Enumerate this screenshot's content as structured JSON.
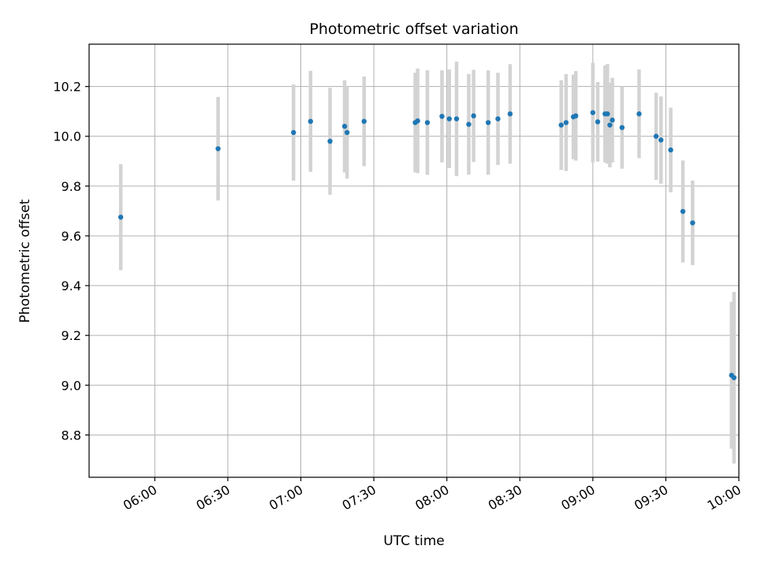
{
  "chart_data": {
    "type": "scatter",
    "title": "Photometric offset variation",
    "xlabel": "UTC time",
    "ylabel": "Photometric offset",
    "x_ticks": [
      "05:30",
      "06:00",
      "06:30",
      "07:00",
      "07:30",
      "08:00",
      "08:30",
      "09:00",
      "09:30",
      "10:00"
    ],
    "x_tick_labels": [
      "",
      "06:00",
      "06:30",
      "07:00",
      "07:30",
      "08:00",
      "08:30",
      "09:00",
      "09:30",
      "10:00"
    ],
    "xlim": [
      "05:33",
      "10:00"
    ],
    "y_ticks": [
      8.8,
      9.0,
      9.2,
      9.4,
      9.6,
      9.8,
      10.0,
      10.2
    ],
    "y_tick_labels": [
      "8.8",
      "9.0",
      "9.2",
      "9.4",
      "9.6",
      "9.8",
      "10.0",
      "10.2"
    ],
    "ylim": [
      8.63,
      10.37
    ],
    "grid": true,
    "point_color": "#1f77b4",
    "errorbar_color": "#d3d3d3",
    "series": [
      {
        "points": [
          {
            "x": "05:46",
            "y": 9.675,
            "err": 0.213
          },
          {
            "x": "06:26",
            "y": 9.95,
            "err": 0.208
          },
          {
            "x": "06:57",
            "y": 10.015,
            "err": 0.193
          },
          {
            "x": "07:04",
            "y": 10.06,
            "err": 0.203
          },
          {
            "x": "07:12",
            "y": 9.98,
            "err": 0.215
          },
          {
            "x": "07:18",
            "y": 10.04,
            "err": 0.185
          },
          {
            "x": "07:19",
            "y": 10.015,
            "err": 0.185
          },
          {
            "x": "07:26",
            "y": 10.06,
            "err": 0.18
          },
          {
            "x": "07:47",
            "y": 10.055,
            "err": 0.2
          },
          {
            "x": "07:48",
            "y": 10.062,
            "err": 0.21
          },
          {
            "x": "07:52",
            "y": 10.055,
            "err": 0.21
          },
          {
            "x": "07:58",
            "y": 10.08,
            "err": 0.185
          },
          {
            "x": "08:01",
            "y": 10.07,
            "err": 0.198
          },
          {
            "x": "08:04",
            "y": 10.07,
            "err": 0.23
          },
          {
            "x": "08:09",
            "y": 10.048,
            "err": 0.202
          },
          {
            "x": "08:11",
            "y": 10.082,
            "err": 0.185
          },
          {
            "x": "08:17",
            "y": 10.055,
            "err": 0.21
          },
          {
            "x": "08:21",
            "y": 10.07,
            "err": 0.185
          },
          {
            "x": "08:26",
            "y": 10.09,
            "err": 0.2
          },
          {
            "x": "08:47",
            "y": 10.045,
            "err": 0.18
          },
          {
            "x": "08:49",
            "y": 10.055,
            "err": 0.195
          },
          {
            "x": "08:52",
            "y": 10.078,
            "err": 0.17
          },
          {
            "x": "08:53",
            "y": 10.082,
            "err": 0.18
          },
          {
            "x": "09:00",
            "y": 10.095,
            "err": 0.2
          },
          {
            "x": "09:02",
            "y": 10.058,
            "err": 0.16
          },
          {
            "x": "09:05",
            "y": 10.09,
            "err": 0.195
          },
          {
            "x": "09:06",
            "y": 10.09,
            "err": 0.2
          },
          {
            "x": "09:07",
            "y": 10.045,
            "err": 0.17
          },
          {
            "x": "09:08",
            "y": 10.065,
            "err": 0.17
          },
          {
            "x": "09:12",
            "y": 10.035,
            "err": 0.165
          },
          {
            "x": "09:19",
            "y": 10.09,
            "err": 0.178
          },
          {
            "x": "09:26",
            "y": 10.0,
            "err": 0.175
          },
          {
            "x": "09:28",
            "y": 9.985,
            "err": 0.175
          },
          {
            "x": "09:32",
            "y": 9.945,
            "err": 0.17
          },
          {
            "x": "09:37",
            "y": 9.698,
            "err": 0.205
          },
          {
            "x": "09:41",
            "y": 9.652,
            "err": 0.17
          },
          {
            "x": "09:57",
            "y": 9.04,
            "err": 0.295
          },
          {
            "x": "09:58",
            "y": 9.03,
            "err": 0.345
          }
        ]
      }
    ]
  }
}
